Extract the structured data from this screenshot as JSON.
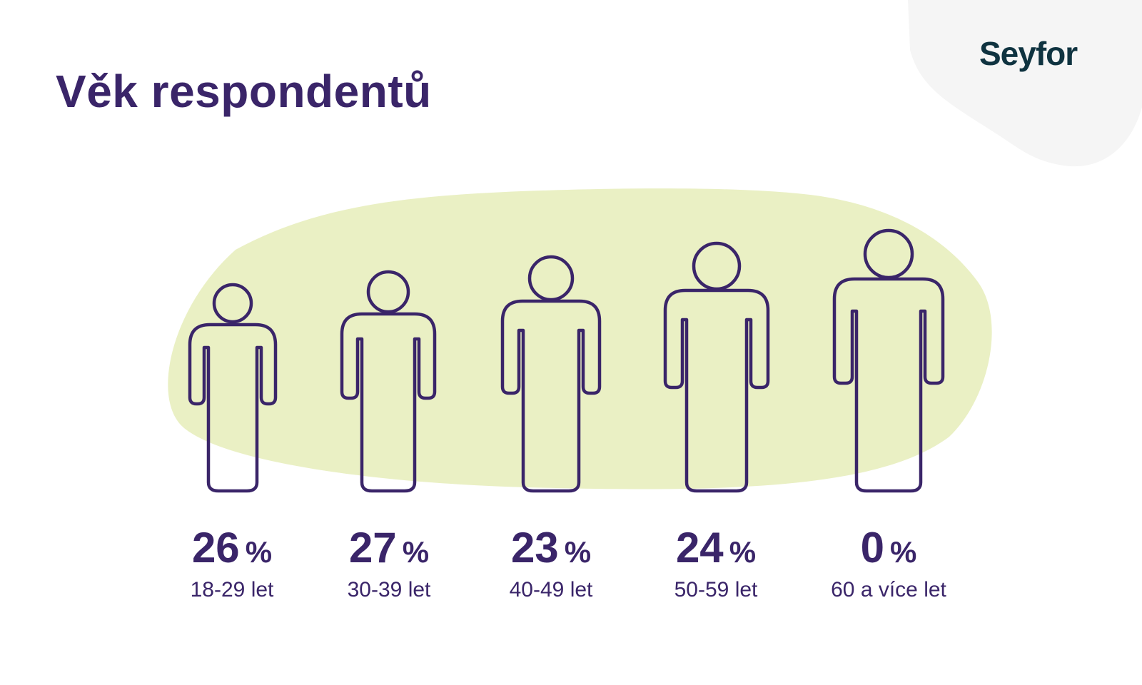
{
  "title": "Věk respondentů",
  "logo": {
    "text": "Seyfor"
  },
  "colors": {
    "purple": "#3a2569",
    "blob_green": "#eaf0c4",
    "corner_gray": "#f5f5f5",
    "logo_teal": "#0f3340"
  },
  "chart_data": {
    "type": "pictograph",
    "title": "Věk respondentů",
    "unit": "%",
    "categories": [
      "18-29 let",
      "30-39 let",
      "40-49 let",
      "50-59 let",
      "60 a více let"
    ],
    "values": [
      26,
      27,
      23,
      24,
      0
    ]
  },
  "groups": [
    {
      "value": "26",
      "unit": "%",
      "label": "18-29 let"
    },
    {
      "value": "27",
      "unit": "%",
      "label": "30-39 let"
    },
    {
      "value": "23",
      "unit": "%",
      "label": "40-49 let"
    },
    {
      "value": "24",
      "unit": "%",
      "label": "50-59 let"
    },
    {
      "value": "0",
      "unit": "%",
      "label": "60 a více let"
    }
  ]
}
